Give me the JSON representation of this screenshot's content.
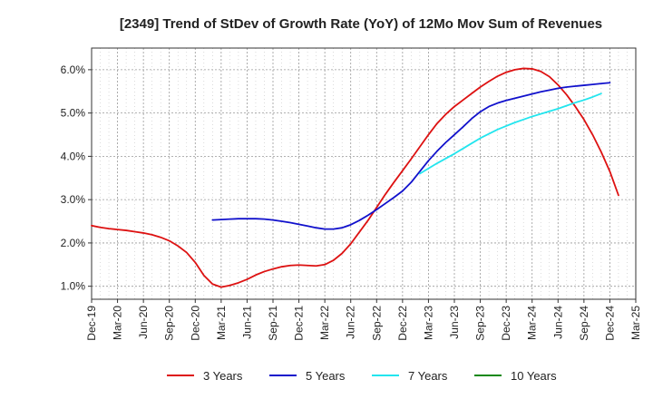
{
  "chart_data": {
    "type": "line",
    "title": "[2349]  Trend of StDev of Growth Rate (YoY) of 12Mo Mov Sum of Revenues",
    "xlabel": "",
    "ylabel": "",
    "ylim": [
      0.7,
      6.5
    ],
    "yticks": [
      1.0,
      2.0,
      3.0,
      4.0,
      5.0,
      6.0
    ],
    "ytick_labels": [
      "1.0%",
      "2.0%",
      "3.0%",
      "4.0%",
      "5.0%",
      "6.0%"
    ],
    "xticks": [
      "Dec-19",
      "Mar-20",
      "Jun-20",
      "Sep-20",
      "Dec-20",
      "Mar-21",
      "Jun-21",
      "Sep-21",
      "Dec-21",
      "Mar-22",
      "Jun-22",
      "Sep-22",
      "Dec-22",
      "Mar-23",
      "Jun-23",
      "Sep-23",
      "Dec-23",
      "Mar-24",
      "Jun-24",
      "Sep-24",
      "Dec-24",
      "Mar-25"
    ],
    "grid": true,
    "legend_position": "bottom",
    "series": [
      {
        "name": "3 Years",
        "color": "#dd1111",
        "start_month_index": 0,
        "values": [
          2.4,
          2.36,
          2.33,
          2.31,
          2.29,
          2.26,
          2.23,
          2.19,
          2.13,
          2.05,
          1.93,
          1.78,
          1.55,
          1.25,
          1.05,
          0.98,
          1.02,
          1.08,
          1.16,
          1.26,
          1.34,
          1.4,
          1.45,
          1.48,
          1.49,
          1.48,
          1.47,
          1.5,
          1.6,
          1.76,
          1.98,
          2.25,
          2.52,
          2.82,
          3.12,
          3.4,
          3.67,
          3.94,
          4.22,
          4.5,
          4.76,
          4.97,
          5.15,
          5.3,
          5.45,
          5.6,
          5.73,
          5.85,
          5.94,
          6.0,
          6.03,
          6.02,
          5.96,
          5.84,
          5.65,
          5.42,
          5.15,
          4.85,
          4.5,
          4.1,
          3.65,
          3.1
        ]
      },
      {
        "name": "5 Years",
        "color": "#1111cc",
        "start_month_index": 14,
        "values": [
          2.53,
          2.54,
          2.55,
          2.56,
          2.56,
          2.56,
          2.55,
          2.53,
          2.5,
          2.47,
          2.43,
          2.39,
          2.35,
          2.32,
          2.32,
          2.35,
          2.42,
          2.52,
          2.64,
          2.77,
          2.91,
          3.05,
          3.2,
          3.4,
          3.65,
          3.9,
          4.12,
          4.32,
          4.5,
          4.68,
          4.87,
          5.03,
          5.15,
          5.23,
          5.29,
          5.34,
          5.39,
          5.44,
          5.49,
          5.53,
          5.57,
          5.6,
          5.62,
          5.64,
          5.66,
          5.68,
          5.7
        ]
      },
      {
        "name": "7 Years",
        "color": "#22e5ee",
        "start_month_index": 38,
        "values": [
          3.6,
          3.72,
          3.84,
          3.95,
          4.06,
          4.18,
          4.3,
          4.42,
          4.52,
          4.62,
          4.7,
          4.78,
          4.85,
          4.92,
          4.98,
          5.04,
          5.1,
          5.17,
          5.24,
          5.3,
          5.37,
          5.45
        ]
      },
      {
        "name": "10 Years",
        "color": "#118811",
        "start_month_index": 0,
        "values": []
      }
    ]
  }
}
